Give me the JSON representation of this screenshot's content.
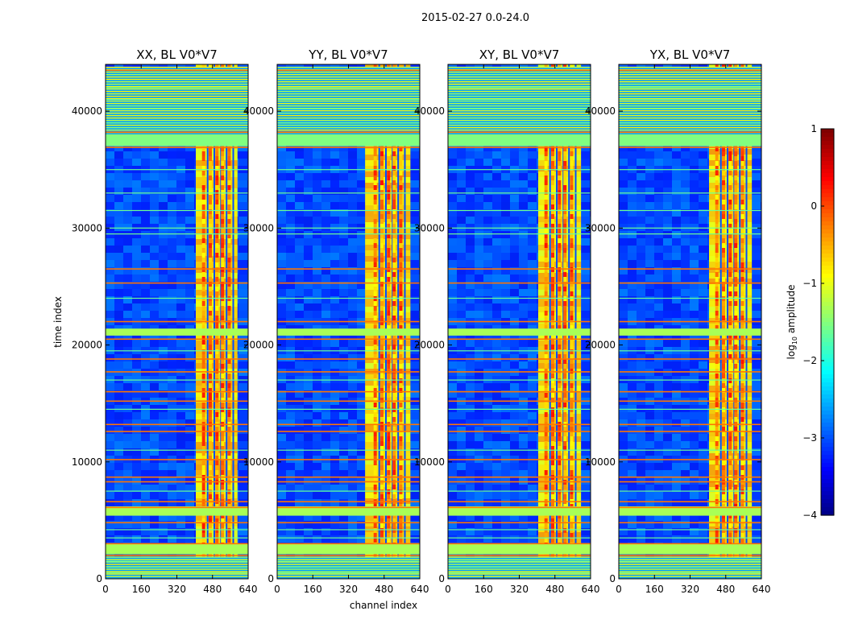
{
  "figure": {
    "suptitle": "2015-02-27 0.0-24.0",
    "xlabel": "channel index",
    "ylabel": "time index"
  },
  "colorbar": {
    "label_prefix": "log",
    "label_sub": "10",
    "label_suffix": " amplitude",
    "ticks": [
      "1",
      "0",
      "−1",
      "−2",
      "−3",
      "−4"
    ],
    "range": [
      -4,
      1
    ],
    "colormap": "jet"
  },
  "chart_data": {
    "type": "heatmap",
    "panels": [
      {
        "title": "XX, BL V0*V7",
        "pol": "XX"
      },
      {
        "title": "YY, BL V0*V7",
        "pol": "YY"
      },
      {
        "title": "XY, BL V0*V7",
        "pol": "XY"
      },
      {
        "title": "YX, BL V0*V7",
        "pol": "YX"
      }
    ],
    "xlim": [
      0,
      640
    ],
    "ylim": [
      0,
      44000
    ],
    "x_ticks": [
      0,
      160,
      320,
      480,
      640
    ],
    "y_ticks": [
      0,
      10000,
      20000,
      30000,
      40000
    ],
    "y_tick_labels": [
      "0",
      "10000",
      "20000",
      "30000",
      "40000"
    ],
    "value_range": [
      -4,
      1
    ],
    "background_level": -3.0,
    "rfi_band_channels": [
      [
        405,
        592
      ],
      [
        395,
        598
      ],
      [
        405,
        597
      ],
      [
        405,
        597
      ]
    ],
    "strong_columns": [
      440,
      470,
      500,
      525,
      555
    ],
    "flagged_time_rows": [
      {
        "range": [
          38000,
          43800
        ],
        "kind": "dense"
      },
      {
        "range": [
          37000,
          38000
        ],
        "kind": "edge"
      },
      {
        "range": [
          20800,
          21400
        ],
        "kind": "band"
      },
      {
        "range": [
          5400,
          6200
        ],
        "kind": "band"
      },
      {
        "range": [
          2100,
          3000
        ],
        "kind": "band"
      },
      {
        "range": [
          0,
          1900
        ],
        "kind": "dense"
      }
    ],
    "orange_row_lines": [
      36900,
      26500,
      25300,
      22000,
      20500,
      18800,
      17700,
      16000,
      15200,
      13200,
      12600,
      10200,
      8700,
      8300,
      6600,
      6100,
      4800,
      3000,
      2000,
      38200,
      43500
    ],
    "green_row_lines": [
      39000,
      40200,
      41000,
      42000,
      35000,
      33000,
      31500,
      30000,
      29500,
      24000,
      19500,
      17000,
      14500,
      11000,
      7500,
      4200,
      3500,
      1500,
      1000,
      500
    ]
  }
}
